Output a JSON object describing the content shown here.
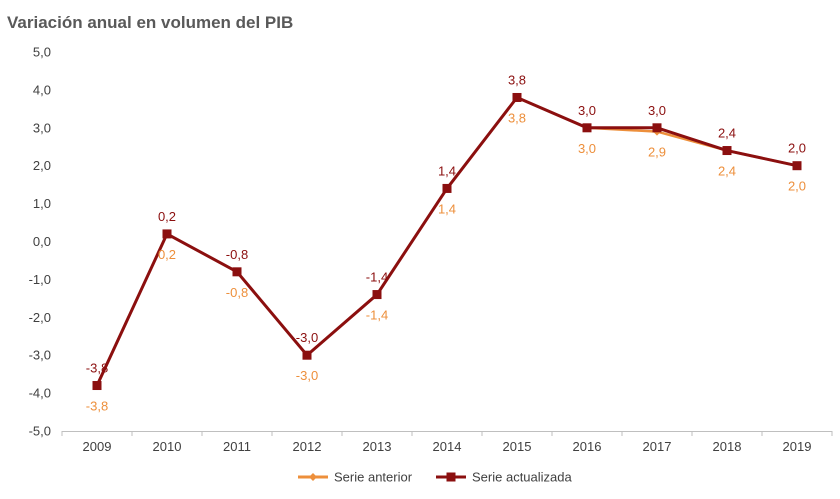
{
  "chart_data": {
    "type": "line",
    "title": "Variación anual en volumen del PIB",
    "xlabel": "",
    "ylabel": "",
    "ylim": [
      -5.0,
      5.0
    ],
    "yticks": [
      -5.0,
      -4.0,
      -3.0,
      -2.0,
      -1.0,
      0.0,
      1.0,
      2.0,
      3.0,
      4.0,
      5.0
    ],
    "ytick_labels": [
      "-5,0",
      "-4,0",
      "-3,0",
      "-2,0",
      "-1,0",
      "0,0",
      "1,0",
      "2,0",
      "3,0",
      "4,0",
      "5,0"
    ],
    "categories": [
      "2009",
      "2010",
      "2011",
      "2012",
      "2013",
      "2014",
      "2015",
      "2016",
      "2017",
      "2018",
      "2019"
    ],
    "grid": false,
    "legend_position": "bottom",
    "series": [
      {
        "name": "Serie anterior",
        "color": "#ED8F3B",
        "marker": "diamond",
        "values": [
          -3.8,
          0.2,
          -0.8,
          -3.0,
          -1.4,
          1.4,
          3.8,
          3.0,
          2.9,
          2.4,
          2.0
        ],
        "labels": [
          "-3,8",
          "0,2",
          "-0,8",
          "-3,0",
          "-1,4",
          "1,4",
          "3,8",
          "3,0",
          "2,9",
          "2,4",
          "2,0"
        ],
        "label_position": "below"
      },
      {
        "name": "Serie actualizada",
        "color": "#8B0F0F",
        "marker": "square",
        "values": [
          -3.8,
          0.2,
          -0.8,
          -3.0,
          -1.4,
          1.4,
          3.8,
          3.0,
          3.0,
          2.4,
          2.0
        ],
        "labels": [
          "-3,8",
          "0,2",
          "-0,8",
          "-3,0",
          "-1,4",
          "1,4",
          "3,8",
          "3,0",
          "3,0",
          "2,4",
          "2,0"
        ],
        "label_position": "above"
      }
    ]
  }
}
